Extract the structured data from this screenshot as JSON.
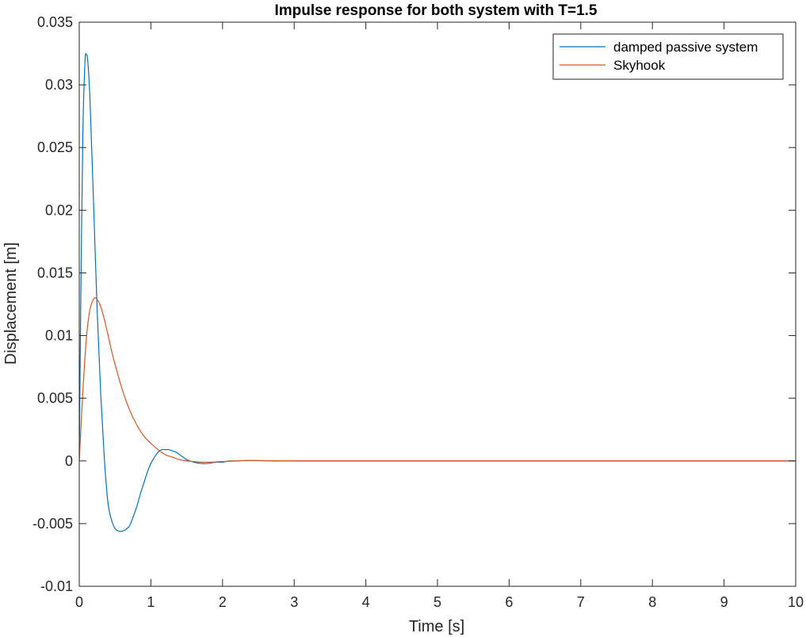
{
  "chart_data": {
    "type": "line",
    "title": "Impulse response for both system with T=1.5",
    "xlabel": "Time [s]",
    "ylabel": "Displacement [m]",
    "xlim": [
      0,
      10
    ],
    "ylim": [
      -0.01,
      0.035
    ],
    "xticks": [
      0,
      1,
      2,
      3,
      4,
      5,
      6,
      7,
      8,
      9,
      10
    ],
    "yticks": [
      -0.01,
      -0.005,
      0,
      0.005,
      0.01,
      0.015,
      0.02,
      0.025,
      0.03,
      0.035
    ],
    "ytick_labels": [
      "-0.01",
      "-0.005",
      "0",
      "0.005",
      "0.01",
      "0.015",
      "0.02",
      "0.025",
      "0.03",
      "0.035"
    ],
    "grid": false,
    "box": true,
    "legend_position": "top-right",
    "series": [
      {
        "name": "damped passive system",
        "color": "#0072BD",
        "x": [
          0,
          0.02,
          0.05,
          0.08,
          0.1,
          0.12,
          0.15,
          0.2,
          0.25,
          0.3,
          0.35,
          0.4,
          0.45,
          0.5,
          0.55,
          0.6,
          0.64,
          0.7,
          0.75,
          0.8,
          0.85,
          0.9,
          0.95,
          1.0,
          1.05,
          1.1,
          1.15,
          1.2,
          1.25,
          1.3,
          1.35,
          1.4,
          1.45,
          1.5,
          1.6,
          1.7,
          1.8,
          1.9,
          2.0,
          2.1,
          2.2,
          2.3,
          2.4,
          2.5,
          2.6,
          2.8,
          3.0,
          3.5,
          4,
          5,
          6,
          7,
          8,
          9,
          10
        ],
        "y": [
          0,
          0.012,
          0.026,
          0.0318,
          0.0324,
          0.0318,
          0.0288,
          0.0205,
          0.012,
          0.0053,
          0.0002,
          -0.0033,
          -0.0047,
          -0.0054,
          -0.0056,
          -0.0056,
          -0.0055,
          -0.0052,
          -0.0045,
          -0.0037,
          -0.0027,
          -0.0018,
          -0.0009,
          -0.0002,
          0.0003,
          0.0007,
          0.0009,
          0.0009,
          0.0009,
          0.0008,
          0.0007,
          0.0005,
          0.0003,
          0.0001,
          -0.0001,
          -0.0002,
          -0.0002,
          -0.0001,
          -0.0001,
          0,
          0,
          3e-05,
          3e-05,
          2e-05,
          1e-05,
          0,
          0,
          0,
          0,
          0,
          0,
          0,
          0,
          0,
          0
        ]
      },
      {
        "name": "Skyhook",
        "color": "#D95319",
        "x": [
          0,
          0.05,
          0.1,
          0.15,
          0.2,
          0.23,
          0.27,
          0.3,
          0.35,
          0.4,
          0.45,
          0.5,
          0.6,
          0.7,
          0.8,
          0.9,
          1.0,
          1.1,
          1.2,
          1.3,
          1.4,
          1.5,
          1.6,
          1.7,
          1.8,
          1.9,
          2.0,
          2.2,
          2.4,
          2.6,
          2.8,
          3.0,
          3.5,
          4,
          5,
          6,
          7,
          8,
          9,
          10
        ],
        "y": [
          0,
          0.0055,
          0.0098,
          0.0121,
          0.0129,
          0.013,
          0.0127,
          0.0123,
          0.0113,
          0.0101,
          0.0088,
          0.0077,
          0.0057,
          0.0041,
          0.0029,
          0.002,
          0.0014,
          0.0009,
          0.0005,
          0.0003,
          0.0001,
          0,
          -5e-05,
          -0.0001,
          -0.0001,
          -8e-05,
          -5e-05,
          0,
          3e-05,
          2e-05,
          1e-05,
          0,
          0,
          0,
          0,
          0,
          0,
          0,
          0,
          0
        ]
      }
    ]
  }
}
